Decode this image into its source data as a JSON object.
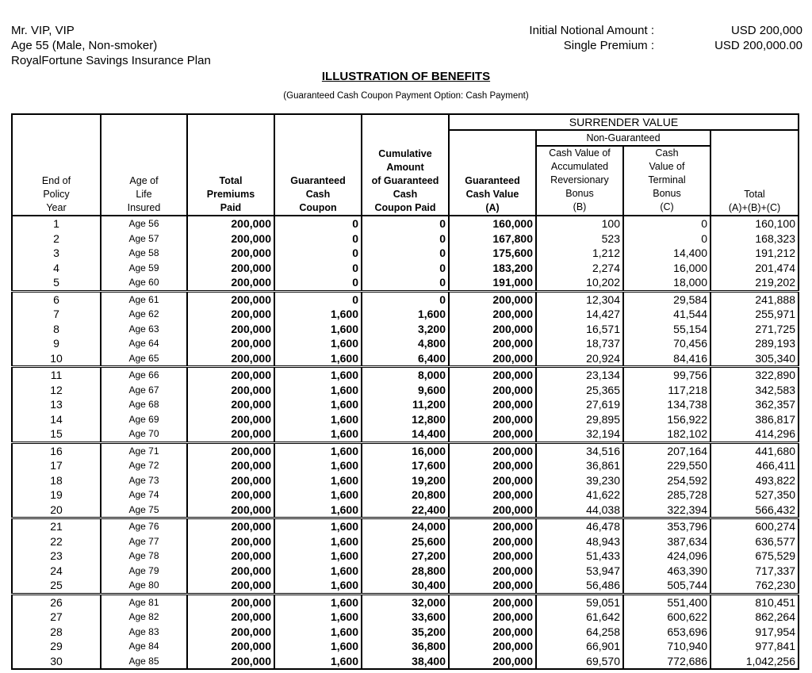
{
  "client": {
    "name": "Mr. VIP, VIP",
    "profile": "Age 55 (Male, Non-smoker)",
    "plan": "RoyalFortune Savings Insurance Plan"
  },
  "summary": {
    "notional_label": "Initial Notional Amount :",
    "notional_value": "USD 200,000",
    "premium_label": "Single Premium :",
    "premium_value": "USD 200,000.00"
  },
  "title": "ILLUSTRATION OF BENEFITS",
  "subtitle": "(Guaranteed Cash Coupon Payment Option: Cash Payment)",
  "table": {
    "surrender_value": "SURRENDER VALUE",
    "non_guaranteed": "Non-Guaranteed",
    "columns": [
      [
        "End of",
        "Policy",
        "Year"
      ],
      [
        "Age of",
        "Life",
        "Insured"
      ],
      [
        "Total",
        "Premiums",
        "Paid"
      ],
      [
        "Guaranteed",
        "Cash",
        "Coupon"
      ],
      [
        "Cumulative",
        "Amount",
        "of Guaranteed",
        "Cash",
        "Coupon Paid"
      ],
      [
        "Guaranteed",
        "Cash Value",
        "(A)"
      ],
      [
        "Cash Value of",
        "Accumulated",
        "Reversionary",
        "Bonus",
        "(B)"
      ],
      [
        "Cash",
        "Value of",
        "Terminal",
        "Bonus",
        "(C)"
      ],
      [
        "Total",
        "(A)+(B)+(C)"
      ]
    ],
    "rows": [
      [
        "1",
        "Age 56",
        "200,000",
        "0",
        "0",
        "160,000",
        "100",
        "0",
        "160,100"
      ],
      [
        "2",
        "Age 57",
        "200,000",
        "0",
        "0",
        "167,800",
        "523",
        "0",
        "168,323"
      ],
      [
        "3",
        "Age 58",
        "200,000",
        "0",
        "0",
        "175,600",
        "1,212",
        "14,400",
        "191,212"
      ],
      [
        "4",
        "Age 59",
        "200,000",
        "0",
        "0",
        "183,200",
        "2,274",
        "16,000",
        "201,474"
      ],
      [
        "5",
        "Age 60",
        "200,000",
        "0",
        "0",
        "191,000",
        "10,202",
        "18,000",
        "219,202"
      ],
      [
        "6",
        "Age 61",
        "200,000",
        "0",
        "0",
        "200,000",
        "12,304",
        "29,584",
        "241,888"
      ],
      [
        "7",
        "Age 62",
        "200,000",
        "1,600",
        "1,600",
        "200,000",
        "14,427",
        "41,544",
        "255,971"
      ],
      [
        "8",
        "Age 63",
        "200,000",
        "1,600",
        "3,200",
        "200,000",
        "16,571",
        "55,154",
        "271,725"
      ],
      [
        "9",
        "Age 64",
        "200,000",
        "1,600",
        "4,800",
        "200,000",
        "18,737",
        "70,456",
        "289,193"
      ],
      [
        "10",
        "Age 65",
        "200,000",
        "1,600",
        "6,400",
        "200,000",
        "20,924",
        "84,416",
        "305,340"
      ],
      [
        "11",
        "Age 66",
        "200,000",
        "1,600",
        "8,000",
        "200,000",
        "23,134",
        "99,756",
        "322,890"
      ],
      [
        "12",
        "Age 67",
        "200,000",
        "1,600",
        "9,600",
        "200,000",
        "25,365",
        "117,218",
        "342,583"
      ],
      [
        "13",
        "Age 68",
        "200,000",
        "1,600",
        "11,200",
        "200,000",
        "27,619",
        "134,738",
        "362,357"
      ],
      [
        "14",
        "Age 69",
        "200,000",
        "1,600",
        "12,800",
        "200,000",
        "29,895",
        "156,922",
        "386,817"
      ],
      [
        "15",
        "Age 70",
        "200,000",
        "1,600",
        "14,400",
        "200,000",
        "32,194",
        "182,102",
        "414,296"
      ],
      [
        "16",
        "Age 71",
        "200,000",
        "1,600",
        "16,000",
        "200,000",
        "34,516",
        "207,164",
        "441,680"
      ],
      [
        "17",
        "Age 72",
        "200,000",
        "1,600",
        "17,600",
        "200,000",
        "36,861",
        "229,550",
        "466,411"
      ],
      [
        "18",
        "Age 73",
        "200,000",
        "1,600",
        "19,200",
        "200,000",
        "39,230",
        "254,592",
        "493,822"
      ],
      [
        "19",
        "Age 74",
        "200,000",
        "1,600",
        "20,800",
        "200,000",
        "41,622",
        "285,728",
        "527,350"
      ],
      [
        "20",
        "Age 75",
        "200,000",
        "1,600",
        "22,400",
        "200,000",
        "44,038",
        "322,394",
        "566,432"
      ],
      [
        "21",
        "Age 76",
        "200,000",
        "1,600",
        "24,000",
        "200,000",
        "46,478",
        "353,796",
        "600,274"
      ],
      [
        "22",
        "Age 77",
        "200,000",
        "1,600",
        "25,600",
        "200,000",
        "48,943",
        "387,634",
        "636,577"
      ],
      [
        "23",
        "Age 78",
        "200,000",
        "1,600",
        "27,200",
        "200,000",
        "51,433",
        "424,096",
        "675,529"
      ],
      [
        "24",
        "Age 79",
        "200,000",
        "1,600",
        "28,800",
        "200,000",
        "53,947",
        "463,390",
        "717,337"
      ],
      [
        "25",
        "Age 80",
        "200,000",
        "1,600",
        "30,400",
        "200,000",
        "56,486",
        "505,744",
        "762,230"
      ],
      [
        "26",
        "Age 81",
        "200,000",
        "1,600",
        "32,000",
        "200,000",
        "59,051",
        "551,400",
        "810,451"
      ],
      [
        "27",
        "Age 82",
        "200,000",
        "1,600",
        "33,600",
        "200,000",
        "61,642",
        "600,622",
        "862,264"
      ],
      [
        "28",
        "Age 83",
        "200,000",
        "1,600",
        "35,200",
        "200,000",
        "64,258",
        "653,696",
        "917,954"
      ],
      [
        "29",
        "Age 84",
        "200,000",
        "1,600",
        "36,800",
        "200,000",
        "66,901",
        "710,940",
        "977,841"
      ],
      [
        "30",
        "Age 85",
        "200,000",
        "1,600",
        "38,400",
        "200,000",
        "69,570",
        "772,686",
        "1,042,256"
      ]
    ]
  }
}
